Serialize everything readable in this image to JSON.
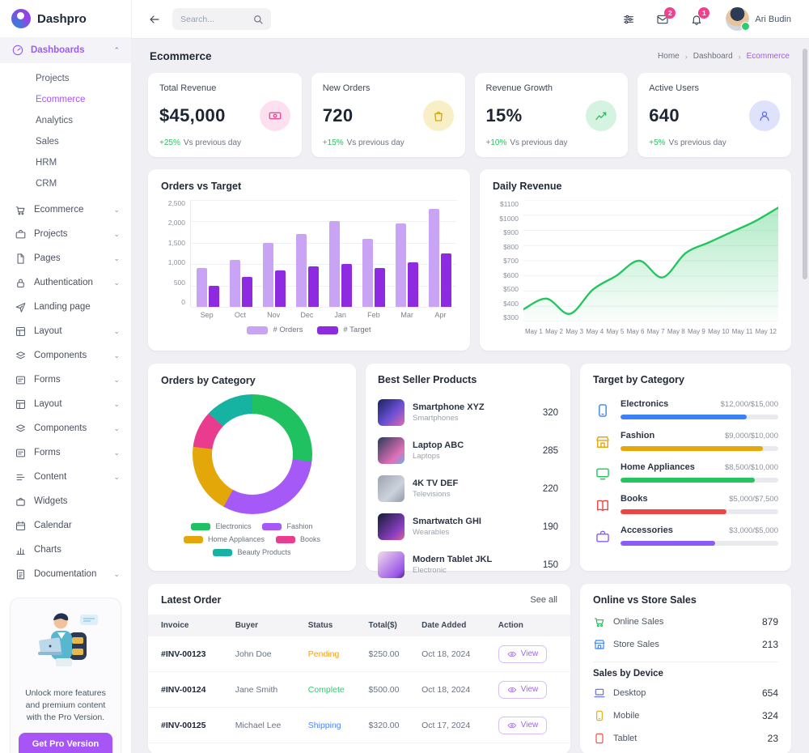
{
  "brand": {
    "name": "Dashpro"
  },
  "topbar": {
    "search_placeholder": "Search...",
    "mail_badge": "2",
    "bell_badge": "1",
    "user_name": "Ari Budin"
  },
  "sidebar": {
    "dashboards_label": "Dashboards",
    "dashboards_sub": [
      "Projects",
      "Ecommerce",
      "Analytics",
      "Sales",
      "HRM",
      "CRM"
    ],
    "active_sub": "Ecommerce",
    "menu": [
      {
        "label": "Ecommerce",
        "icon": "cart",
        "chevron": true
      },
      {
        "label": "Projects",
        "icon": "briefcase",
        "chevron": true
      },
      {
        "label": "Pages",
        "icon": "page",
        "chevron": true
      },
      {
        "label": "Authentication",
        "icon": "lock",
        "chevron": true
      },
      {
        "label": "Landing page",
        "icon": "rocket",
        "chevron": false
      },
      {
        "label": "Layout",
        "icon": "layout",
        "chevron": true
      },
      {
        "label": "Components",
        "icon": "layers",
        "chevron": true
      },
      {
        "label": "Forms",
        "icon": "forms",
        "chevron": true
      },
      {
        "label": "Layout",
        "icon": "layout",
        "chevron": true
      },
      {
        "label": "Components",
        "icon": "layers",
        "chevron": true
      },
      {
        "label": "Forms",
        "icon": "forms",
        "chevron": true
      },
      {
        "label": "Content",
        "icon": "content",
        "chevron": true
      },
      {
        "label": "Widgets",
        "icon": "widgets",
        "chevron": false
      },
      {
        "label": "Calendar",
        "icon": "calendar",
        "chevron": false
      },
      {
        "label": "Charts",
        "icon": "charts",
        "chevron": false
      },
      {
        "label": "Documentation",
        "icon": "doc",
        "chevron": true
      }
    ],
    "promo": {
      "text": "Unlock more features and premium content with the Pro Version.",
      "button": "Get Pro Version →"
    }
  },
  "page": {
    "title": "Ecommerce",
    "breadcrumb": [
      "Home",
      "Dashboard",
      "Ecommerce"
    ]
  },
  "stats": [
    {
      "label": "Total Revenue",
      "value": "$45,000",
      "delta": "+25%",
      "suffix": "Vs previous day",
      "icon": "money",
      "icon_bg": "#fce0ef",
      "icon_color": "#e8418c",
      "delta_color": "#22c55e"
    },
    {
      "label": "New Orders",
      "value": "720",
      "delta": "+15%",
      "suffix": "Vs previous day",
      "icon": "bag",
      "icon_bg": "#f8efc6",
      "icon_color": "#d2a310",
      "delta_color": "#22c55e"
    },
    {
      "label": "Revenue Growth",
      "value": "15%",
      "delta": "+10%",
      "suffix": "Vs previous day",
      "icon": "trend",
      "icon_bg": "#d5f3e1",
      "icon_color": "#27b857",
      "delta_color": "#22c55e"
    },
    {
      "label": "Active Users",
      "value": "640",
      "delta": "+5%",
      "suffix": "Vs previous day",
      "icon": "user",
      "icon_bg": "#dee2fb",
      "icon_color": "#5e6ae8",
      "delta_color": "#22c55e"
    }
  ],
  "chart_data": [
    {
      "type": "bar",
      "title": "Orders vs Target",
      "categories": [
        "Sep",
        "Oct",
        "Nov",
        "Dec",
        "Jan",
        "Feb",
        "Mar",
        "Apr"
      ],
      "series": [
        {
          "name": "# Orders",
          "color": "#c9a4f5",
          "values": [
            900,
            1100,
            1500,
            1700,
            2000,
            1600,
            1950,
            2300
          ]
        },
        {
          "name": "# Target",
          "color": "#8e2be0",
          "values": [
            500,
            700,
            850,
            950,
            1000,
            900,
            1050,
            1250
          ]
        }
      ],
      "ylim": [
        0,
        2500
      ],
      "yticks": [
        "0",
        "500",
        "1,000",
        "1,500",
        "2,000",
        "2,500"
      ],
      "grid": true,
      "legend_position": "bottom"
    },
    {
      "type": "area",
      "title": "Daily Revenue",
      "x": [
        "May 1",
        "May 2",
        "May 3",
        "May 4",
        "May 5",
        "May 6",
        "May 7",
        "May 8",
        "May 9",
        "May 10",
        "May 11",
        "May 12"
      ],
      "values": [
        380,
        450,
        350,
        510,
        600,
        700,
        590,
        750,
        820,
        890,
        960,
        1050
      ],
      "ylim": [
        300,
        1100
      ],
      "yticks": [
        "$300",
        "$400",
        "$500",
        "$600",
        "$700",
        "$800",
        "$900",
        "$1000",
        "$1100"
      ],
      "color": "#22c55e",
      "grid": true
    },
    {
      "type": "pie",
      "title": "Orders by Category",
      "labels": [
        "Electronics",
        "Fashion",
        "Home Appliances",
        "Books",
        "Beauty Products"
      ],
      "values": [
        27,
        31,
        19,
        10,
        13
      ],
      "colors": [
        "#1fc161",
        "#a55af7",
        "#e3a70a",
        "#ea3c8e",
        "#17b3a2"
      ]
    }
  ],
  "best_sellers": {
    "title": "Best Seller Products",
    "items": [
      {
        "name": "Smartphone XYZ",
        "category": "Smartphones",
        "value": "320"
      },
      {
        "name": "Laptop ABC",
        "category": "Laptops",
        "value": "285"
      },
      {
        "name": "4K TV DEF",
        "category": "Televisions",
        "value": "220"
      },
      {
        "name": "Smartwatch GHI",
        "category": "Wearables",
        "value": "190"
      },
      {
        "name": "Modern Tablet JKL",
        "category": "Electronic",
        "value": "150"
      }
    ]
  },
  "target_by_category": {
    "title": "Target by Category",
    "items": [
      {
        "name": "Electronics",
        "value": "$12,000/$15,000",
        "percent": 80,
        "color": "#3b82f6",
        "icon": "phone"
      },
      {
        "name": "Fashion",
        "value": "$9,000/$10,000",
        "percent": 90,
        "color": "#e5a70c",
        "icon": "store"
      },
      {
        "name": "Home Appliances",
        "value": "$8,500/$10,000",
        "percent": 85,
        "color": "#22c55e",
        "icon": "monitor"
      },
      {
        "name": "Books",
        "value": "$5,000/$7,500",
        "percent": 67,
        "color": "#ef4444",
        "icon": "book"
      },
      {
        "name": "Accessories",
        "value": "$3,000/$5,000",
        "percent": 60,
        "color": "#8b5cf6",
        "icon": "briefcase"
      }
    ]
  },
  "latest_order": {
    "title": "Latest Order",
    "see_all": "See all",
    "columns": [
      "Invoice",
      "Buyer",
      "Status",
      "Total($)",
      "Date Added",
      "Action"
    ],
    "rows": [
      {
        "invoice": "#INV-00123",
        "buyer": "John Doe",
        "status": "Pending",
        "status_color": "#f0a020",
        "total": "$250.00",
        "date": "Oct 18, 2024",
        "action": "View"
      },
      {
        "invoice": "#INV-00124",
        "buyer": "Jane Smith",
        "status": "Complete",
        "status_color": "#2fcb70",
        "total": "$500.00",
        "date": "Oct 18, 2024",
        "action": "View"
      },
      {
        "invoice": "#INV-00125",
        "buyer": "Michael Lee",
        "status": "Shipping",
        "status_color": "#4f84f7",
        "total": "$320.00",
        "date": "Oct 17, 2024",
        "action": "View"
      }
    ]
  },
  "sales_panel": {
    "title": "Online vs Store Sales",
    "rows": [
      {
        "label": "Online Sales",
        "value": "879",
        "icon": "cart",
        "color": "#27b857"
      },
      {
        "label": "Store Sales",
        "value": "213",
        "icon": "store",
        "color": "#3b82f6"
      }
    ],
    "subtitle": "Sales by Device",
    "device_rows": [
      {
        "label": "Desktop",
        "value": "654",
        "icon": "laptop",
        "color": "#5e6ae8"
      },
      {
        "label": "Mobile",
        "value": "324",
        "icon": "phone",
        "color": "#e5a70c"
      },
      {
        "label": "Tablet",
        "value": "23",
        "icon": "tablet",
        "color": "#ef4444"
      }
    ]
  }
}
